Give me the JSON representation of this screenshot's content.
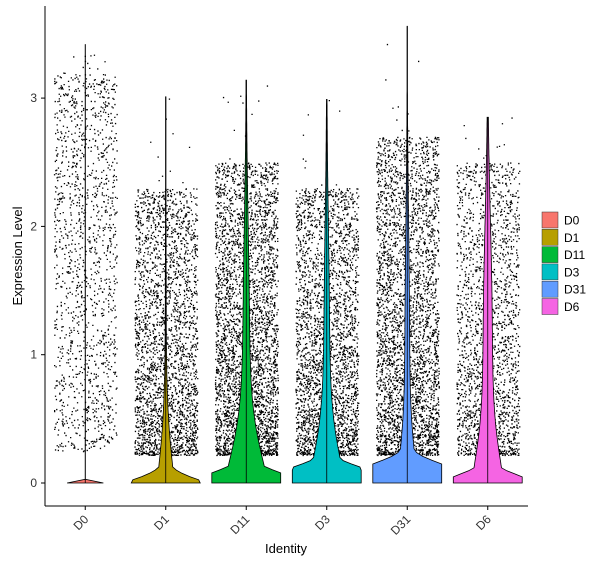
{
  "chart_data": {
    "type": "violin",
    "title": "",
    "xlabel": "Identity",
    "ylabel": "Expression Level",
    "ylim": [
      -0.18,
      3.6
    ],
    "yticks": [
      0,
      1,
      2,
      3
    ],
    "grid": false,
    "legend_position": "right",
    "categories": [
      "D0",
      "D1",
      "D11",
      "D3",
      "D31",
      "D6"
    ],
    "series": [
      {
        "name": "D0",
        "color": "#F8766D",
        "max": 3.42,
        "jitter_max": 3.2,
        "mode": 0.0,
        "spike_width": 0.0,
        "base_width": 0.5,
        "upper_width": 0.0,
        "n_points": 1400
      },
      {
        "name": "D1",
        "color": "#B79F00",
        "max": 3.01,
        "jitter_max": 2.3,
        "mode": 0.02,
        "spike_width": 0.22,
        "base_width": 0.95,
        "upper_width": 0.02,
        "n_points": 2600
      },
      {
        "name": "D11",
        "color": "#00BA38",
        "max": 3.14,
        "jitter_max": 2.5,
        "mode": 0.08,
        "spike_width": 0.55,
        "base_width": 0.95,
        "upper_width": 0.14,
        "n_points": 3600
      },
      {
        "name": "D3",
        "color": "#00BFC4",
        "max": 2.99,
        "jitter_max": 2.3,
        "mode": 0.12,
        "spike_width": 0.45,
        "base_width": 0.95,
        "upper_width": 0.12,
        "n_points": 2800
      },
      {
        "name": "D31",
        "color": "#619CFF",
        "max": 3.56,
        "jitter_max": 2.7,
        "mode": 0.15,
        "spike_width": 0.25,
        "base_width": 0.95,
        "upper_width": 0.1,
        "n_points": 3400
      },
      {
        "name": "D6",
        "color": "#F564E3",
        "max": 2.85,
        "jitter_max": 2.5,
        "mode": 0.05,
        "spike_width": 0.38,
        "base_width": 0.95,
        "upper_width": 0.2,
        "n_points": 2000
      }
    ]
  }
}
